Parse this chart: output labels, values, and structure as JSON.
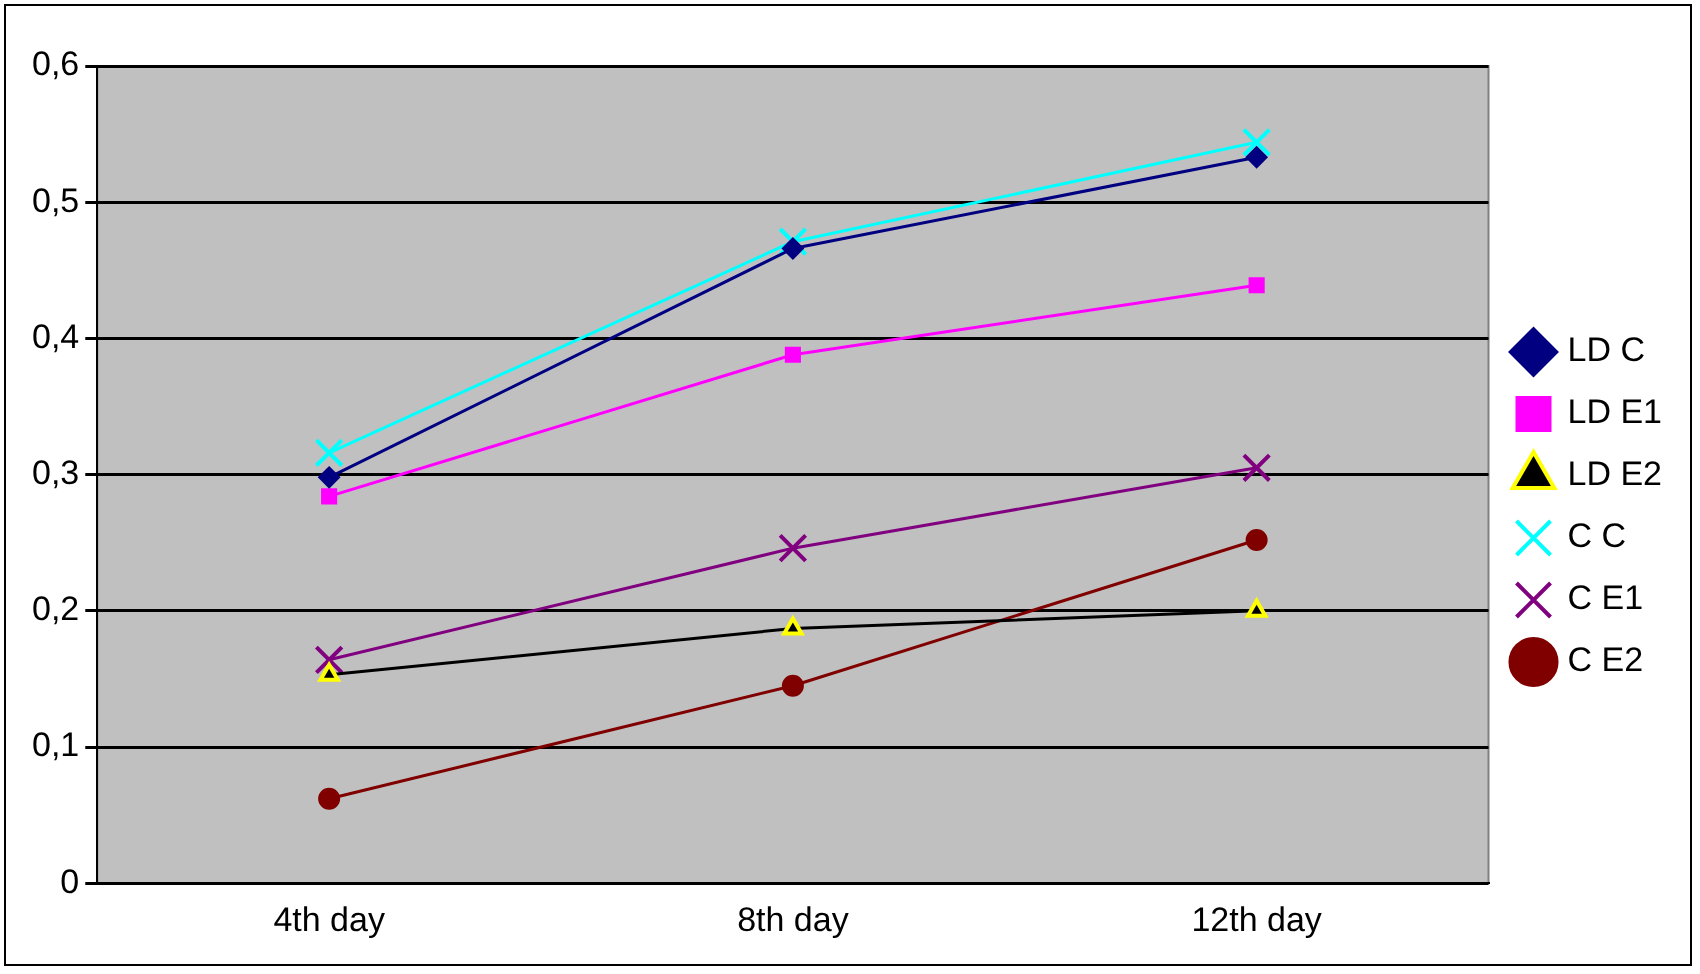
{
  "chart_data": {
    "type": "line",
    "categories": [
      "4th day",
      "8th day",
      "12th day"
    ],
    "series": [
      {
        "name": "LD C",
        "color": "#000080",
        "marker": "diamond",
        "values": [
          0.298,
          0.466,
          0.533
        ]
      },
      {
        "name": "LD E1",
        "color": "#ff00ff",
        "marker": "square",
        "values": [
          0.284,
          0.388,
          0.439
        ]
      },
      {
        "name": "LD E2",
        "color": "#000000",
        "marker": "triangle",
        "values": [
          0.153,
          0.187,
          0.2
        ]
      },
      {
        "name": "C C",
        "color": "#00ffff",
        "marker": "cross",
        "values": [
          0.316,
          0.471,
          0.544
        ]
      },
      {
        "name": "C E1",
        "color": "#800080",
        "marker": "cross",
        "values": [
          0.164,
          0.246,
          0.305
        ]
      },
      {
        "name": "C E2",
        "color": "#800000",
        "marker": "circle",
        "values": [
          0.062,
          0.145,
          0.252
        ]
      }
    ],
    "ylim": [
      0,
      0.6
    ],
    "yticks": [
      {
        "value": 0,
        "label": "0"
      },
      {
        "value": 0.1,
        "label": "0,1"
      },
      {
        "value": 0.2,
        "label": "0,2"
      },
      {
        "value": 0.3,
        "label": "0,3"
      },
      {
        "value": 0.4,
        "label": "0,4"
      },
      {
        "value": 0.5,
        "label": "0,5"
      },
      {
        "value": 0.6,
        "label": "0,6"
      }
    ],
    "grid": "y",
    "legend": "right"
  }
}
